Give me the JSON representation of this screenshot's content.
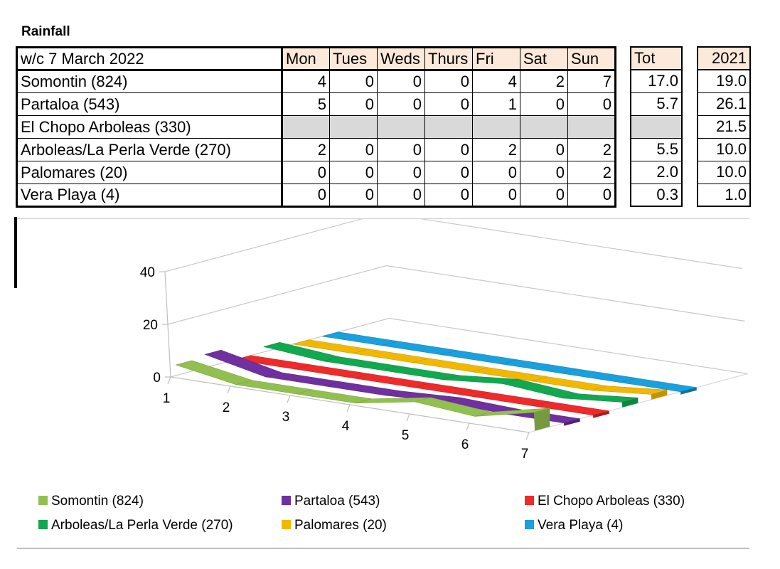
{
  "title": "Rainfall",
  "table": {
    "week_label": "w/c 7 March 2022",
    "days": [
      "Mon",
      "Tues",
      "Weds",
      "Thurs",
      "Fri",
      "Sat",
      "Sun"
    ],
    "total_header": "Tot",
    "prev_header": "2021",
    "rows": [
      {
        "name": "Somontin (824)",
        "values": [
          "4",
          "0",
          "0",
          "0",
          "4",
          "2",
          "7"
        ],
        "total": "17.0",
        "prev": "19.0"
      },
      {
        "name": "Partaloa (543)",
        "values": [
          "5",
          "0",
          "0",
          "0",
          "1",
          "0",
          "0"
        ],
        "total": "5.7",
        "prev": "26.1"
      },
      {
        "name": "El Chopo Arboleas (330)",
        "values": [
          "",
          "",
          "",
          "",
          "",
          "",
          ""
        ],
        "total": "",
        "prev": "21.5"
      },
      {
        "name": "Arboleas/La Perla Verde (270)",
        "values": [
          "2",
          "0",
          "0",
          "0",
          "2",
          "0",
          "2"
        ],
        "total": "5.5",
        "prev": "10.0"
      },
      {
        "name": "Palomares (20)",
        "values": [
          "0",
          "0",
          "0",
          "0",
          "0",
          "0",
          "2"
        ],
        "total": "2.0",
        "prev": "10.0"
      },
      {
        "name": "Vera Playa (4)",
        "values": [
          "0",
          "0",
          "0",
          "0",
          "0",
          "0",
          "0"
        ],
        "total": "0.3",
        "prev": "1.0"
      }
    ]
  },
  "chart_data": {
    "type": "line",
    "x": [
      1,
      2,
      3,
      4,
      5,
      6,
      7
    ],
    "y_ticks": [
      "0",
      "20",
      "40"
    ],
    "ylim": [
      0,
      40
    ],
    "legend_position": "bottom",
    "series": [
      {
        "name": "Somontin (824)",
        "color": "#92c050",
        "values": [
          4,
          0,
          0,
          0,
          4,
          2,
          7
        ]
      },
      {
        "name": "Partaloa (543)",
        "color": "#7030a0",
        "values": [
          5,
          0,
          0,
          0,
          1,
          0,
          0
        ]
      },
      {
        "name": "El Chopo Arboleas (330)",
        "color": "#ee2a2a",
        "values": [
          0,
          0,
          0,
          0,
          0,
          0,
          0
        ]
      },
      {
        "name": "Arboleas/La Perla Verde (270)",
        "color": "#12a850",
        "values": [
          2,
          0,
          0,
          0,
          2,
          0,
          2
        ]
      },
      {
        "name": "Palomares (20)",
        "color": "#f2b800",
        "values": [
          0,
          0,
          0,
          0,
          0,
          0,
          2
        ]
      },
      {
        "name": "Vera Playa (4)",
        "color": "#1aa0dc",
        "values": [
          0,
          0,
          0,
          0,
          0,
          0,
          0
        ]
      }
    ]
  }
}
